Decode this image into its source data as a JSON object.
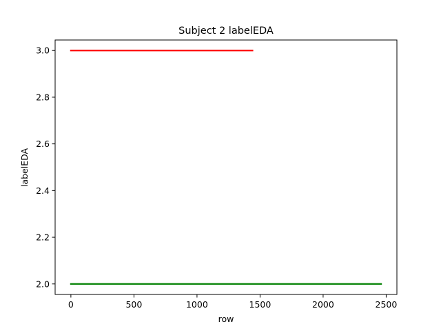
{
  "chart_data": {
    "type": "line",
    "title": "Subject 2 labelEDA",
    "xlabel": "row",
    "ylabel": "labelEDA",
    "xlim": [
      -125,
      2585
    ],
    "ylim": [
      1.955,
      3.045
    ],
    "xticks": [
      0,
      500,
      1000,
      1500,
      2000,
      2500
    ],
    "yticks": [
      2.0,
      2.2,
      2.4,
      2.6,
      2.8,
      3.0
    ],
    "xtick_labels": [
      "0",
      "500",
      "1000",
      "1500",
      "2000",
      "2500"
    ],
    "ytick_labels": [
      "2.0",
      "2.2",
      "2.4",
      "2.6",
      "2.8",
      "3.0"
    ],
    "grid": false,
    "series": [
      {
        "color": "#ff0000",
        "x": [
          0,
          1440
        ],
        "y": [
          3.0,
          3.0
        ]
      },
      {
        "color": "#008000",
        "x": [
          0,
          2460
        ],
        "y": [
          2.0,
          2.0
        ]
      }
    ]
  }
}
